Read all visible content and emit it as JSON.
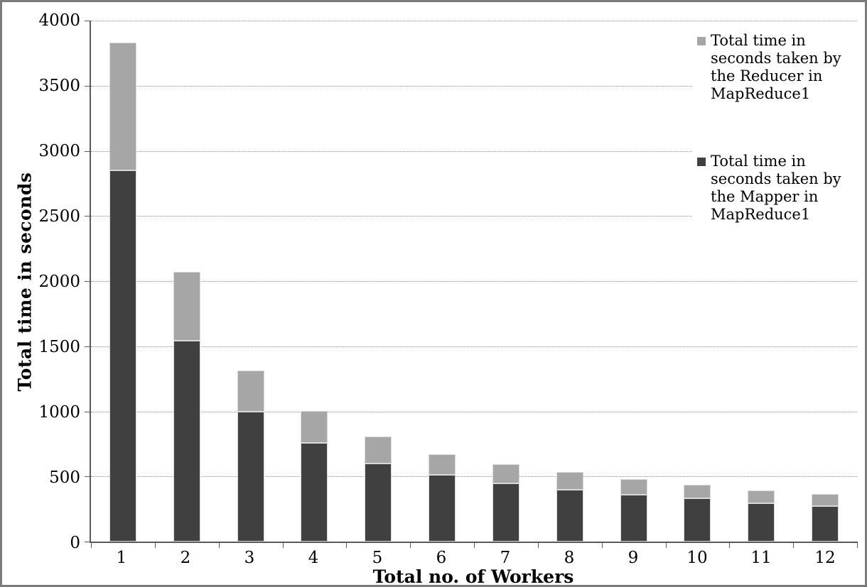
{
  "colors": {
    "mapper": "#404040",
    "reducer": "#a6a6a6",
    "bar_border": "#d9d9d9",
    "gridline": "#8c8c8c",
    "axis": "#595959",
    "frame_border": "#7b7b7b",
    "background": "#ffffff",
    "text": "#000000"
  },
  "chart_data": {
    "type": "bar",
    "stacked": true,
    "title": "",
    "xlabel": "Total no. of Workers",
    "ylabel": "Total time in seconds",
    "categories": [
      "1",
      "2",
      "3",
      "4",
      "5",
      "6",
      "7",
      "8",
      "9",
      "10",
      "11",
      "12"
    ],
    "series": [
      {
        "name": "Total time in seconds taken by the Mapper in MapReduce1",
        "color_key": "mapper",
        "values": [
          2850,
          1545,
          1000,
          760,
          600,
          510,
          445,
          400,
          360,
          330,
          295,
          275
        ]
      },
      {
        "name": "Total time in seconds taken by the Reducer in MapReduce1",
        "color_key": "reducer",
        "values": [
          980,
          525,
          315,
          245,
          205,
          160,
          150,
          135,
          120,
          105,
          95,
          90
        ]
      }
    ],
    "ylim": [
      0,
      4000
    ],
    "ytick_step": 500,
    "yticks": [
      0,
      500,
      1000,
      1500,
      2000,
      2500,
      3000,
      3500,
      4000
    ],
    "grid": "horizontal-dotted",
    "legend_position": "top-right",
    "legend": [
      {
        "label": "Total time in\nseconds taken by\nthe Reducer in\nMapReduce1",
        "color_key": "reducer"
      },
      {
        "label": "Total time in\nseconds taken by\nthe Mapper in\nMapReduce1",
        "color_key": "mapper"
      }
    ]
  }
}
